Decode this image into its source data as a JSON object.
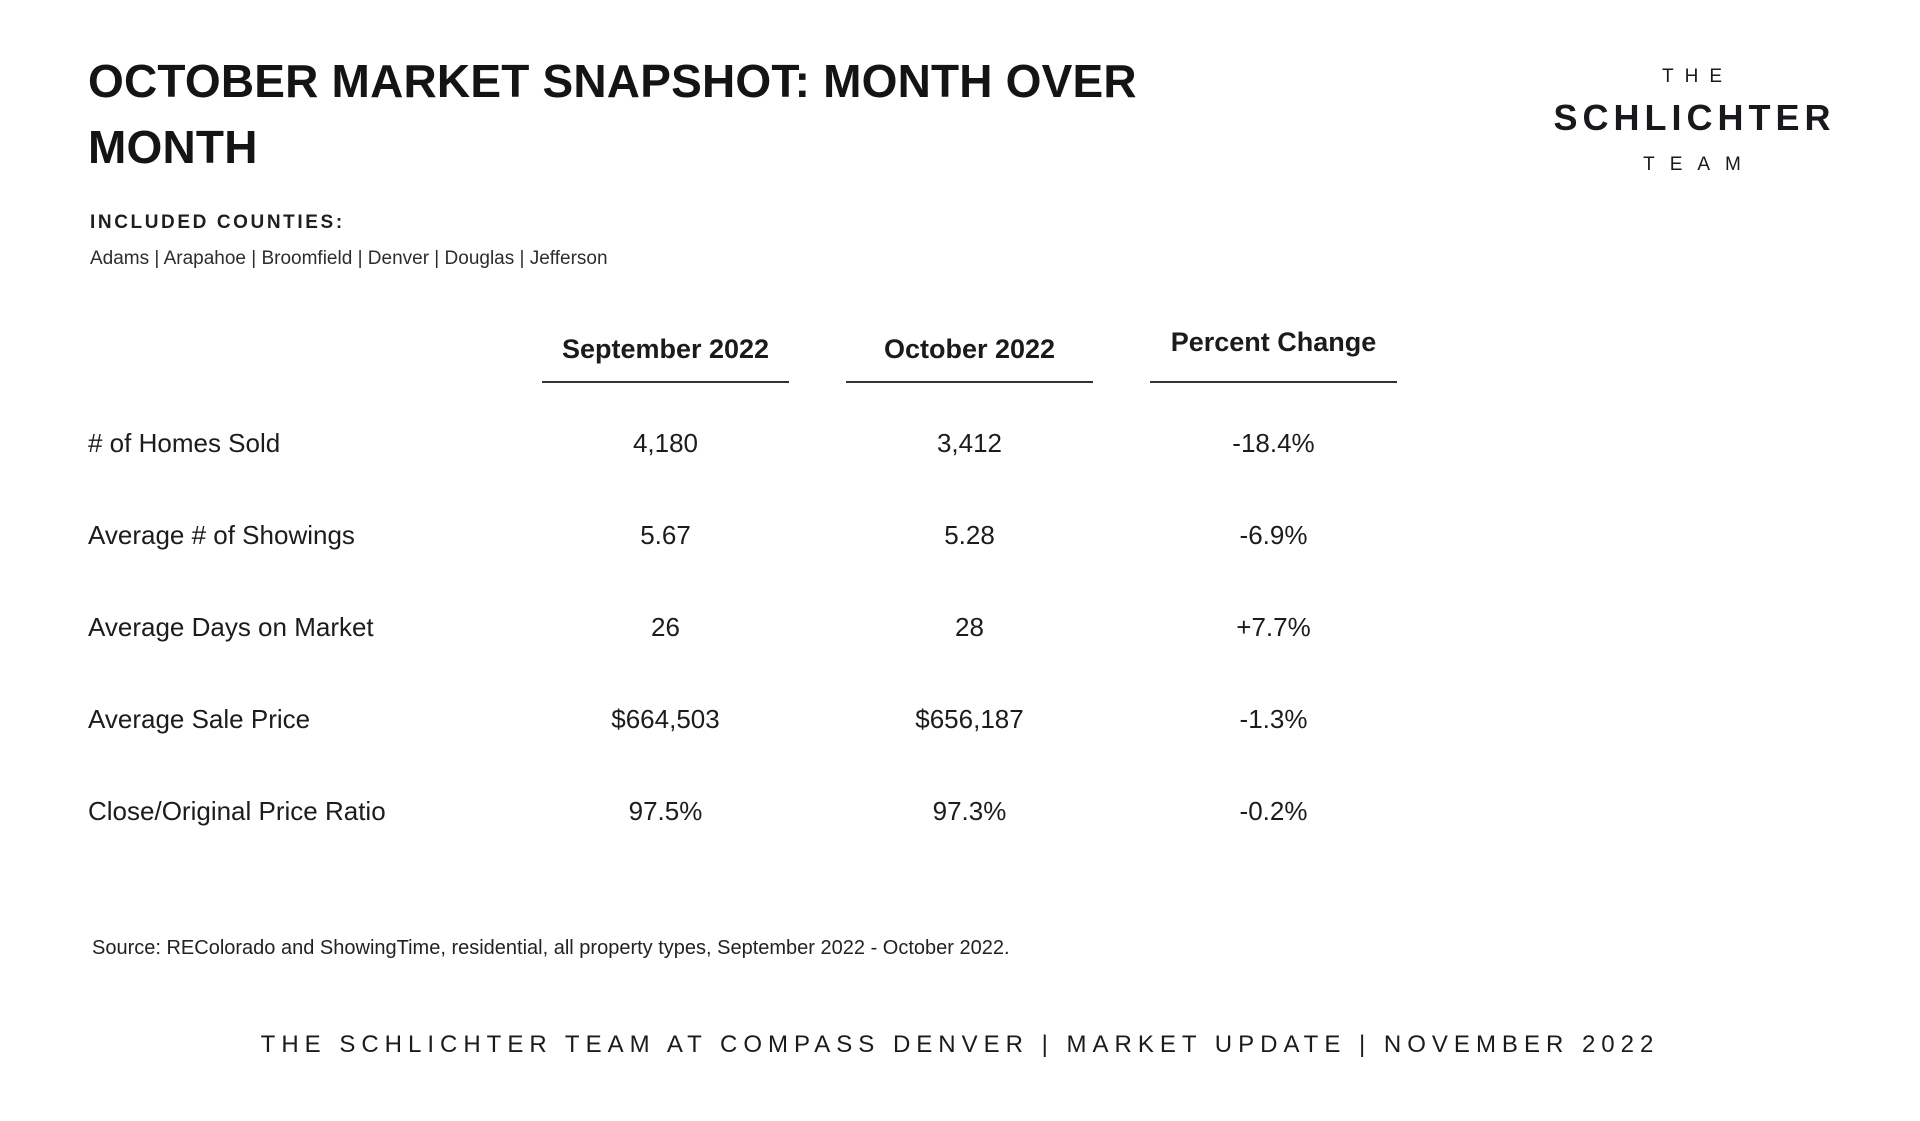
{
  "page": {
    "title_line1": "OCTOBER MARKET SNAPSHOT: MONTH OVER",
    "title_line2": "MONTH",
    "included_counties_label": "INCLUDED COUNTIES:",
    "included_counties": "Adams | Arapahoe | Broomfield | Denver | Douglas | Jefferson",
    "source_note": "Source: REColorado and ShowingTime, residential, all property types, September 2022 - October 2022.",
    "footer": "THE SCHLICHTER TEAM AT COMPASS DENVER | MARKET UPDATE | NOVEMBER 2022"
  },
  "logo": {
    "top": "THE",
    "middle": "SCHLICHTER",
    "bottom": "TEAM"
  },
  "table": {
    "headers": {
      "september": "September 2022",
      "october": "October 2022",
      "percent": "Percent Change"
    },
    "rows": [
      {
        "label": "# of Homes Sold",
        "sep": "4,180",
        "oct": "3,412",
        "pct": "-18.4%"
      },
      {
        "label": "Average # of Showings",
        "sep": "5.67",
        "oct": "5.28",
        "pct": "-6.9%"
      },
      {
        "label": "Average Days on Market",
        "sep": "26",
        "oct": "28",
        "pct": "+7.7%"
      },
      {
        "label": "Average Sale Price",
        "sep": "$664,503",
        "oct": "$656,187",
        "pct": "-1.3%"
      },
      {
        "label": "Close/Original Price Ratio",
        "sep": "97.5%",
        "oct": "97.3%",
        "pct": "-0.2%"
      }
    ]
  },
  "chart_data": {
    "type": "table",
    "columns": [
      "",
      "September 2022",
      "October 2022",
      "Percent Change"
    ],
    "rows": [
      [
        "# of Homes Sold",
        "4,180",
        "3,412",
        "-18.4%"
      ],
      [
        "Average # of Showings",
        "5.67",
        "5.28",
        "-6.9%"
      ],
      [
        "Average Days on Market",
        "26",
        "28",
        "+7.7%"
      ],
      [
        "Average Sale Price",
        "$664,503",
        "$656,187",
        "-1.3%"
      ],
      [
        "Close/Original Price Ratio",
        "97.5%",
        "97.3%",
        "-0.2%"
      ]
    ]
  },
  "colors": {
    "background": "#ffffff",
    "text": "#1a1a1a",
    "underline": "#333333"
  }
}
